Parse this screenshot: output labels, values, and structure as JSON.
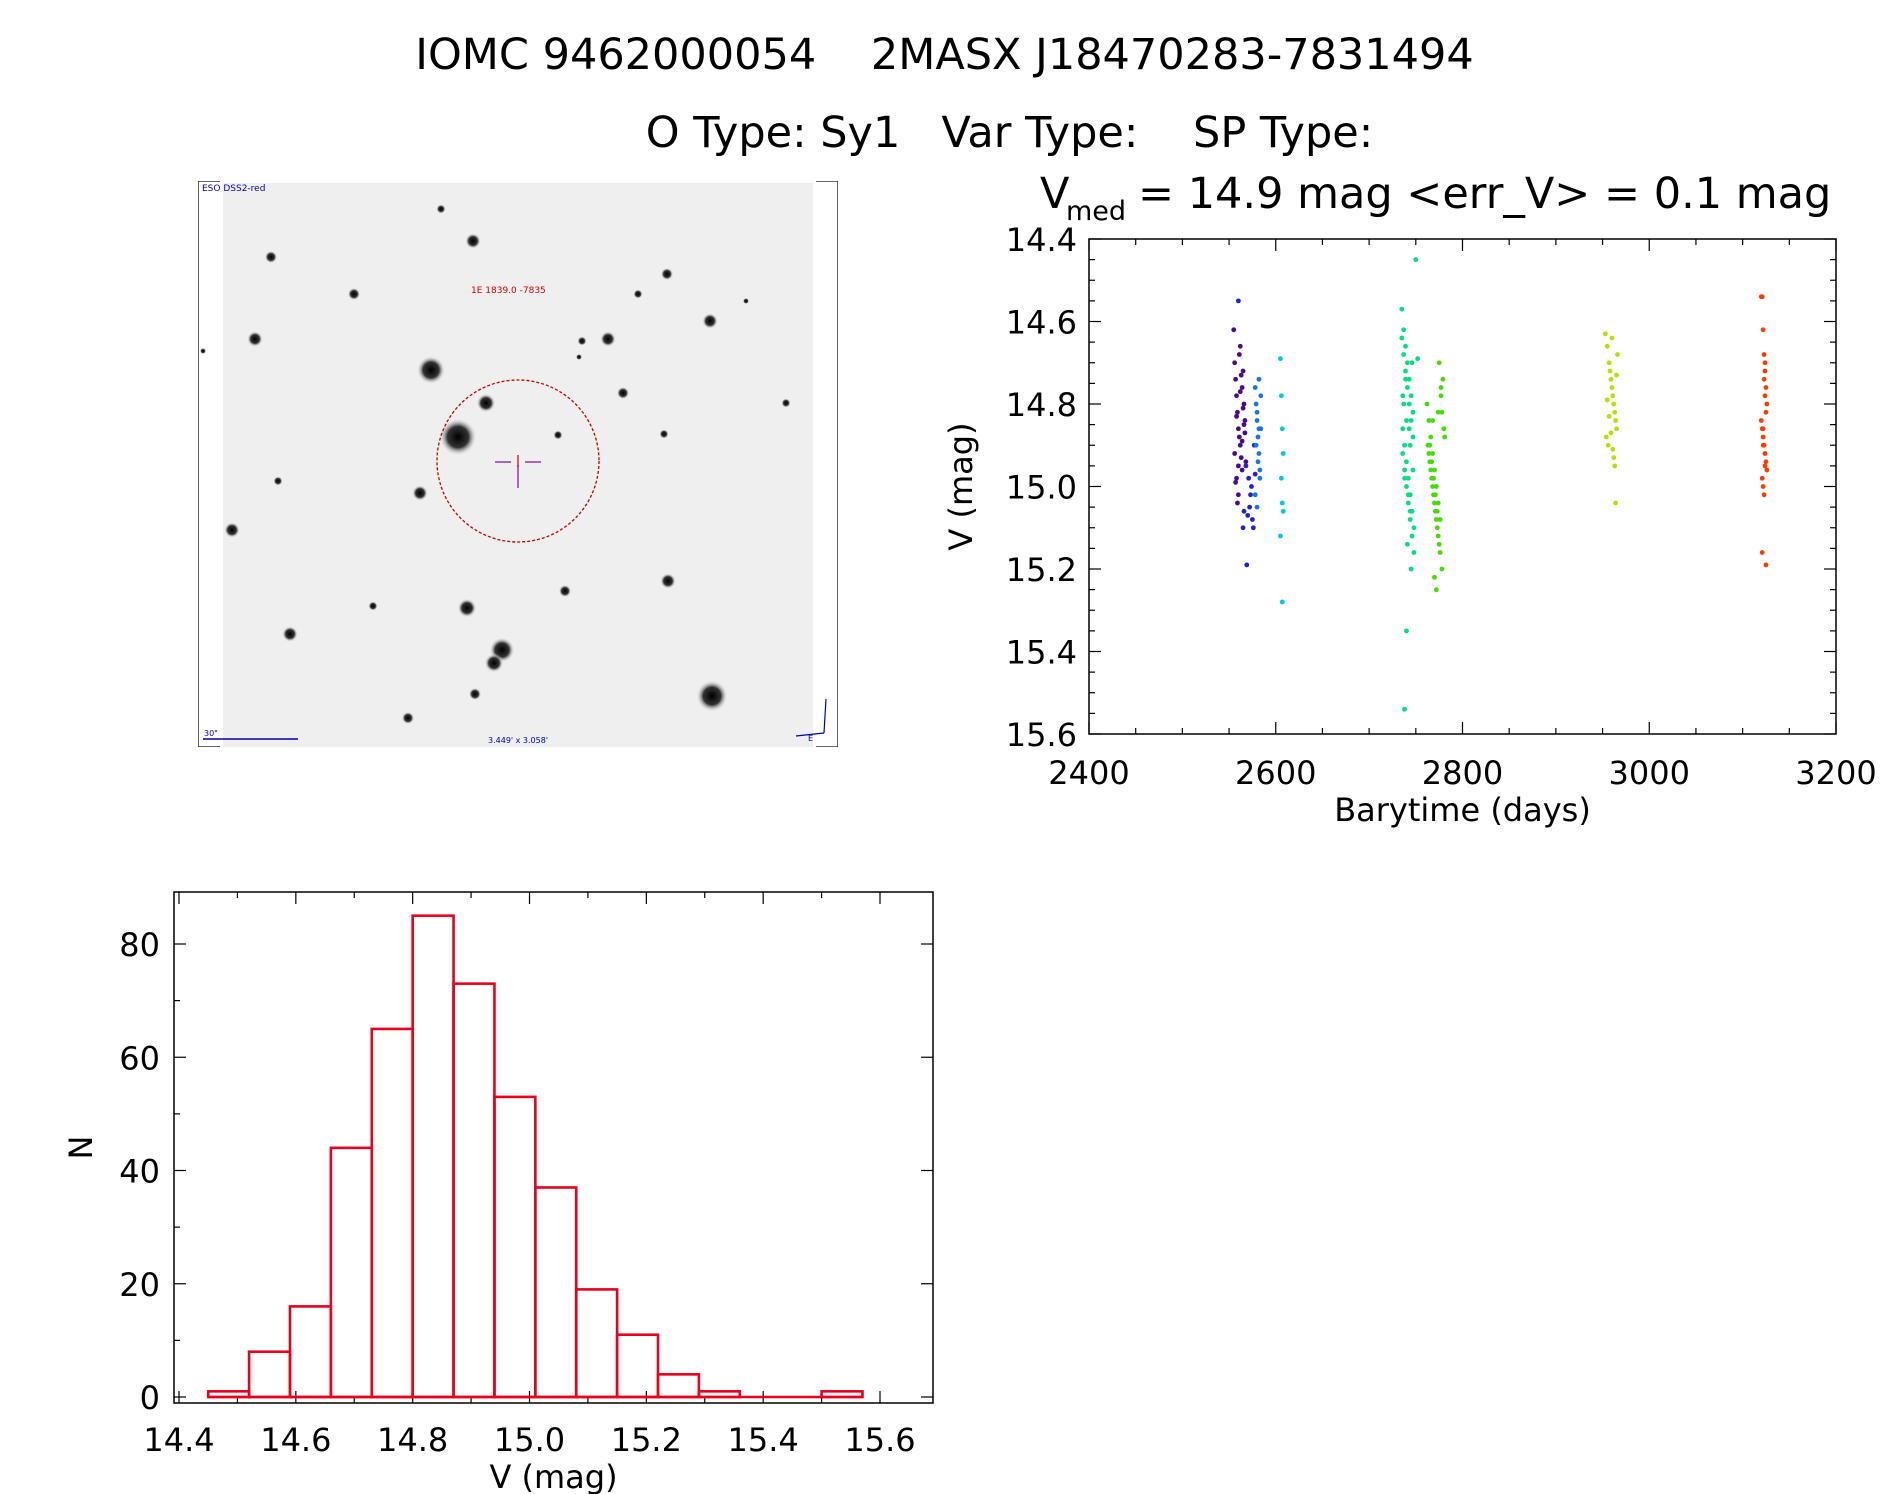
{
  "header": {
    "line1": "IOMC 9462000054    2MASX J18470283-7831494",
    "line2": "O Type: Sy1   Var Type:    SP Type:"
  },
  "stamp": {
    "survey_label": "ESO DSS2-red",
    "object_label": "1E 1839.0 -7835",
    "scale_label": "30\"",
    "fov_label": "3.449' x 3.058'"
  },
  "lightcurve": {
    "stats_prefix": "V",
    "stats_sub": "med",
    "stats_text": "= 14.9 mag <err_V> = 0.1 mag",
    "tick_x": [
      "2400",
      "2600",
      "2800",
      "3000",
      "3200"
    ],
    "tick_y": [
      "14.4",
      "14.6",
      "14.8",
      "15.0",
      "15.2",
      "15.4",
      "15.6"
    ]
  },
  "histogram": {
    "tick_x": [
      "14.4",
      "14.6",
      "14.8",
      "15.0",
      "15.2",
      "15.4",
      "15.6"
    ],
    "tick_y": [
      "0",
      "20",
      "40",
      "60",
      "80"
    ]
  },
  "colors": {
    "hist": "#e8001c",
    "ring": "#c00000",
    "label_blue": "#0000aa"
  },
  "chart_data": [
    {
      "type": "scatter",
      "title": "",
      "xlabel": "Barytime (days)",
      "ylabel": "V (mag)",
      "xlim": [
        2400,
        3200
      ],
      "ylim": [
        15.6,
        14.4
      ],
      "inverted_y": true,
      "series": [
        {
          "color": "#4b0a8a",
          "x": [
            2555,
            2556,
            2557,
            2558,
            2559,
            2560,
            2561,
            2562,
            2563,
            2564,
            2565,
            2566,
            2567,
            2556,
            2558,
            2560,
            2562,
            2564,
            2566,
            2568,
            2557,
            2559,
            2561,
            2563,
            2565,
            2567,
            2560,
            2564,
            2558,
            2562
          ],
          "y": [
            14.62,
            14.7,
            14.74,
            14.78,
            14.82,
            14.86,
            14.88,
            14.9,
            14.93,
            14.96,
            14.72,
            14.8,
            14.84,
            14.92,
            14.98,
            15.02,
            14.66,
            14.76,
            14.85,
            14.94,
            14.99,
            15.04,
            14.68,
            14.73,
            14.81,
            14.87,
            14.95,
            14.89,
            14.83,
            14.77
          ]
        },
        {
          "color": "#2222cc",
          "x": [
            2560,
            2565,
            2570,
            2572,
            2574,
            2576,
            2568,
            2571,
            2573,
            2575,
            2569,
            2566,
            2577,
            2578
          ],
          "y": [
            14.55,
            15.1,
            15.07,
            15.05,
            15.0,
            15.1,
            14.95,
            14.98,
            15.02,
            15.08,
            15.19,
            15.06,
            14.9,
            14.97
          ]
        },
        {
          "color": "#1a73e8",
          "x": [
            2578,
            2579,
            2580,
            2581,
            2582,
            2583,
            2584,
            2580,
            2582,
            2579,
            2581,
            2583,
            2584,
            2578,
            2580,
            2582
          ],
          "y": [
            14.76,
            14.8,
            14.84,
            14.88,
            14.92,
            14.96,
            14.78,
            14.82,
            14.86,
            14.9,
            14.94,
            14.98,
            14.86,
            15.02,
            15.05,
            14.74
          ]
        },
        {
          "color": "#00c8e6",
          "x": [
            2605,
            2606,
            2607,
            2608,
            2606,
            2607,
            2605,
            2608,
            2607
          ],
          "y": [
            14.69,
            14.78,
            14.86,
            14.92,
            14.98,
            15.04,
            15.12,
            15.06,
            15.28
          ]
        },
        {
          "color": "#00e080",
          "x": [
            2735,
            2737,
            2739,
            2741,
            2743,
            2745,
            2747,
            2736,
            2738,
            2740,
            2742,
            2744,
            2746,
            2748,
            2737,
            2739,
            2741,
            2743,
            2745,
            2747,
            2736,
            2738,
            2740,
            2742,
            2744,
            2746,
            2748,
            2735,
            2739,
            2743,
            2747,
            2741,
            2745,
            2737,
            2740,
            2744,
            2738,
            2742,
            2746,
            2736,
            2750,
            2752,
            2740,
            2738,
            2744
          ],
          "y": [
            14.57,
            14.62,
            14.66,
            14.7,
            14.74,
            14.78,
            14.82,
            14.86,
            14.9,
            14.94,
            14.98,
            15.02,
            15.06,
            15.1,
            14.68,
            14.72,
            14.76,
            14.8,
            14.84,
            14.88,
            14.92,
            14.96,
            15.0,
            15.04,
            15.08,
            15.12,
            15.16,
            14.64,
            14.74,
            14.86,
            14.96,
            15.14,
            15.2,
            14.8,
            14.84,
            14.9,
            14.98,
            15.02,
            14.7,
            14.78,
            14.45,
            14.69,
            15.35,
            15.54,
            15.06
          ]
        },
        {
          "color": "#44dd00",
          "x": [
            2762,
            2764,
            2766,
            2768,
            2770,
            2772,
            2774,
            2776,
            2778,
            2780,
            2763,
            2765,
            2767,
            2769,
            2771,
            2773,
            2775,
            2777,
            2779,
            2781,
            2764,
            2766,
            2768,
            2770,
            2772,
            2774,
            2776,
            2778,
            2780,
            2765,
            2767,
            2769,
            2771,
            2773,
            2775,
            2777,
            2770,
            2772,
            2774,
            2768
          ],
          "y": [
            14.8,
            14.84,
            14.88,
            14.92,
            14.96,
            15.0,
            15.04,
            15.08,
            14.82,
            14.86,
            14.9,
            14.94,
            14.98,
            15.02,
            15.06,
            15.1,
            15.14,
            14.78,
            14.74,
            14.88,
            14.92,
            14.96,
            15.0,
            15.04,
            15.08,
            15.12,
            15.16,
            15.2,
            14.86,
            14.9,
            14.94,
            14.98,
            15.02,
            15.06,
            14.7,
            14.76,
            15.22,
            15.25,
            14.82,
            14.84
          ]
        },
        {
          "color": "#b8e000",
          "x": [
            2953,
            2955,
            2957,
            2959,
            2961,
            2963,
            2965,
            2954,
            2956,
            2958,
            2960,
            2962,
            2964,
            2966,
            2955,
            2957,
            2959,
            2961,
            2963,
            2965,
            2960,
            2962,
            2964
          ],
          "y": [
            14.63,
            14.66,
            14.7,
            14.74,
            14.78,
            14.82,
            14.86,
            14.88,
            14.9,
            14.72,
            14.76,
            14.8,
            14.84,
            14.68,
            14.79,
            14.83,
            14.87,
            14.91,
            14.95,
            14.73,
            14.64,
            14.93,
            15.04
          ]
        },
        {
          "color": "#ff3b00",
          "x": [
            3120,
            3121,
            3122,
            3123,
            3124,
            3125,
            3126,
            3120,
            3121,
            3122,
            3123,
            3124,
            3125,
            3126,
            3121,
            3122,
            3123,
            3124,
            3125,
            3122,
            3123,
            3124,
            3121,
            3125,
            3122,
            3124
          ],
          "y": [
            14.54,
            14.54,
            14.62,
            14.68,
            14.72,
            14.76,
            14.8,
            14.84,
            14.86,
            14.88,
            14.9,
            14.92,
            14.94,
            14.96,
            14.98,
            15.0,
            15.02,
            14.78,
            14.82,
            14.86,
            14.74,
            14.7,
            15.16,
            15.19,
            14.9,
            14.95
          ]
        }
      ]
    },
    {
      "type": "bar",
      "title": "",
      "xlabel": "V (mag)",
      "ylabel": "N",
      "xlim": [
        14.4,
        15.65
      ],
      "ylim": [
        0,
        88
      ],
      "bin_edges": [
        14.45,
        14.52,
        14.59,
        14.66,
        14.73,
        14.8,
        14.87,
        14.94,
        15.01,
        15.08,
        15.15,
        15.22,
        15.29,
        15.36,
        15.43,
        15.5,
        15.57
      ],
      "values": [
        1,
        8,
        16,
        44,
        65,
        85,
        73,
        53,
        37,
        19,
        11,
        4,
        1,
        0,
        0,
        1
      ]
    }
  ]
}
